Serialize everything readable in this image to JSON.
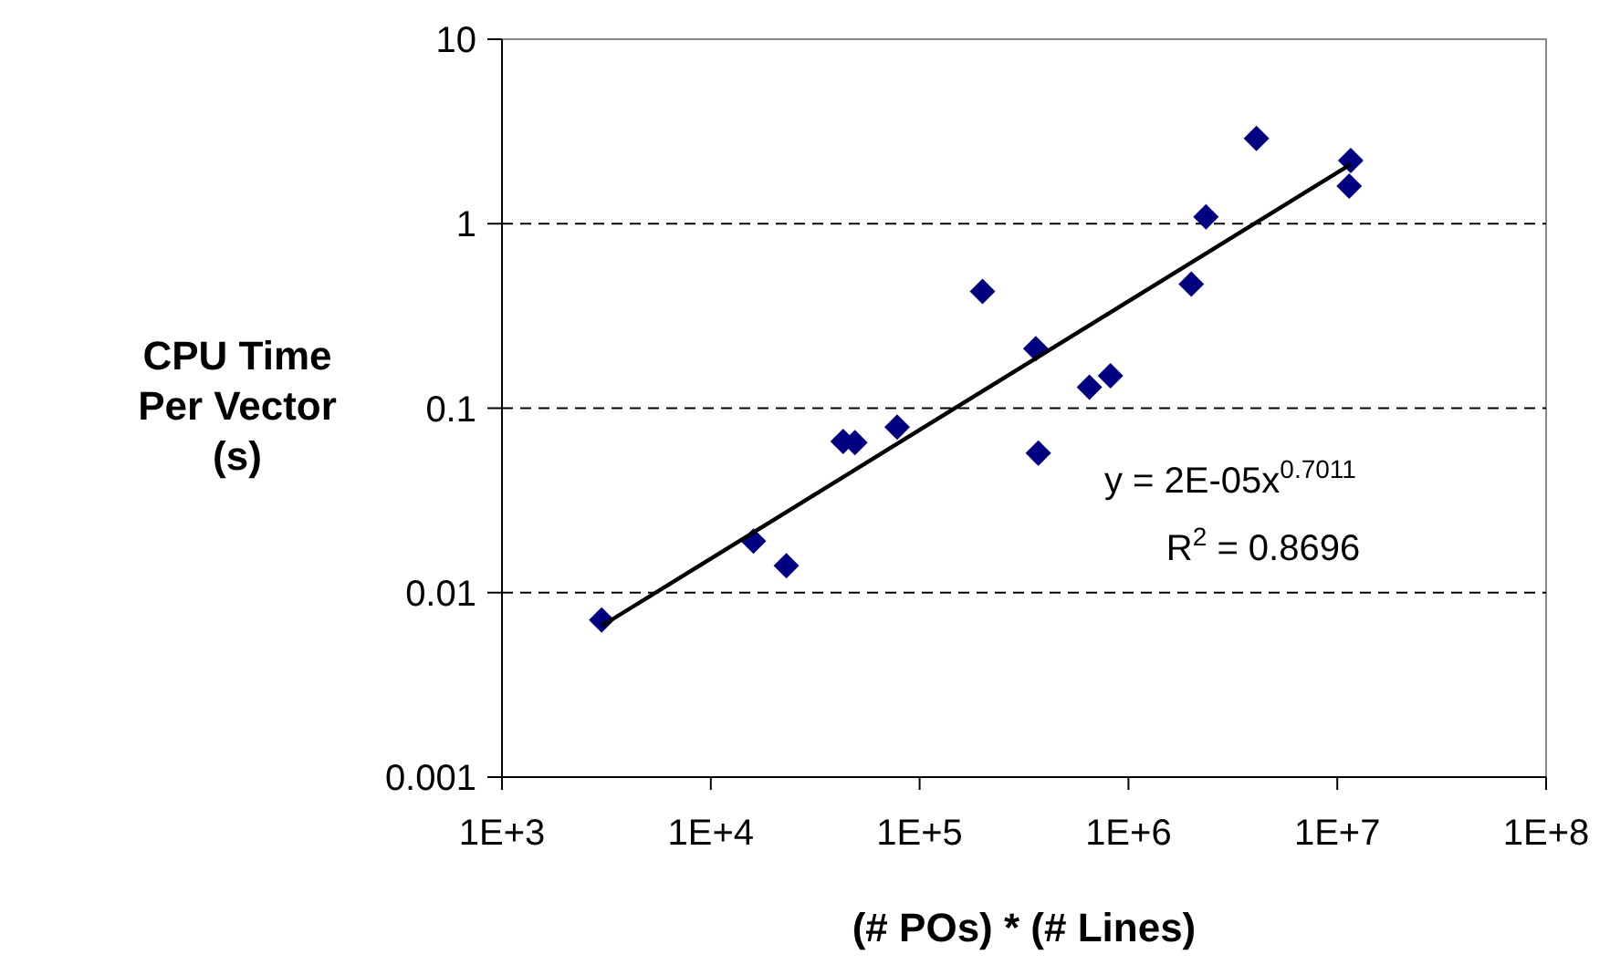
{
  "chart_data": {
    "type": "scatter",
    "xlabel": "(# POs) * (# Lines)",
    "ylabel": "CPU Time Per Vector (s)",
    "log": "xy",
    "grid": "y",
    "line_style": "dashed",
    "marker": "diamond",
    "xlim": [
      1000,
      100000000
    ],
    "xticks": [
      {
        "value": 1000,
        "label": "1E+3"
      },
      {
        "value": 10000,
        "label": "1E+4"
      },
      {
        "value": 100000,
        "label": "1E+5"
      },
      {
        "value": 1000000,
        "label": "1E+6"
      },
      {
        "value": 10000000,
        "label": "1E+7"
      },
      {
        "value": 100000000,
        "label": "1E+8"
      }
    ],
    "ylim": [
      0.001,
      10
    ],
    "yticks": [
      0.001,
      0.01,
      0.1,
      1,
      10
    ],
    "series": [
      {
        "color": "#000080",
        "x": [
          3000,
          16000,
          23000,
          43000,
          49000,
          78000,
          200000,
          360000,
          370000,
          650000,
          820000,
          2000000,
          2350000,
          4100000,
          11600000,
          11400000
        ],
        "values": [
          0.0071,
          0.019,
          0.014,
          0.066,
          0.065,
          0.079,
          0.43,
          0.21,
          0.057,
          0.13,
          0.15,
          0.47,
          1.09,
          2.9,
          2.2,
          1.6
        ]
      },
      {
        "type": "line",
        "color": "#000000",
        "marker": "none",
        "line_style": "solid",
        "x": [
          3000,
          11600000
        ],
        "values": [
          0.0066,
          2.1
        ]
      }
    ],
    "annotations": [
      "y = 2E-05x$^{0.7011}$",
      "R$^{2}$ = 0.8696"
    ]
  }
}
